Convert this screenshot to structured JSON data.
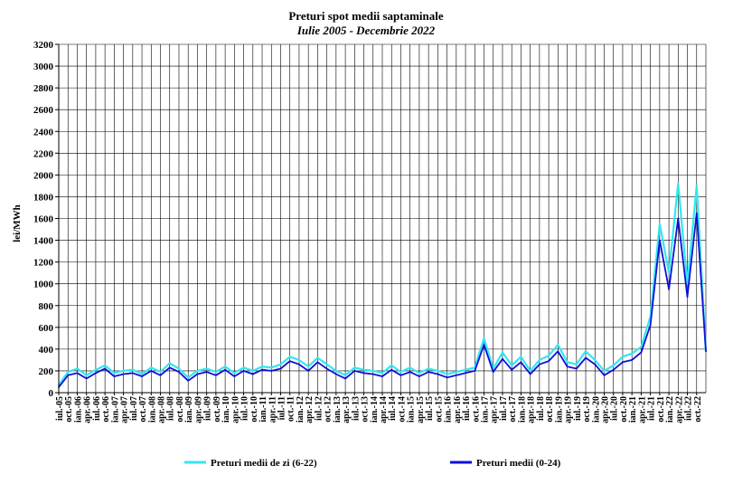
{
  "chart_data": {
    "type": "line",
    "title": "Preturi spot medii saptaminale",
    "subtitle": "Iulie 2005 - Decembrie 2022",
    "xlabel": "",
    "ylabel": "lei/MWh",
    "ylim": [
      0,
      3200
    ],
    "yticks": [
      0,
      200,
      400,
      600,
      800,
      1000,
      1200,
      1400,
      1600,
      1800,
      2000,
      2200,
      2400,
      2600,
      2800,
      3000,
      3200
    ],
    "grid": true,
    "legend_position": "bottom",
    "x_tick_labels": [
      "iul.-05",
      "oct.-05",
      "ian.-06",
      "apr.-06",
      "iul.-06",
      "oct.-06",
      "ian.-07",
      "apr.-07",
      "iul.-07",
      "oct.-07",
      "ian.-08",
      "apr.-08",
      "iul.-08",
      "oct.-08",
      "ian.-09",
      "apr.-09",
      "iul.-09",
      "oct.-09",
      "ian.-10",
      "apr.-10",
      "iul.-10",
      "oct.-10",
      "ian.-11",
      "apr.-11",
      "iul.-11",
      "oct.-11",
      "ian.-12",
      "apr.-12",
      "iul.-12",
      "oct.-12",
      "ian.-13",
      "apr.-13",
      "iul.-13",
      "oct.-13",
      "ian.-14",
      "apr.-14",
      "iul.-14",
      "oct.-14",
      "ian.-15",
      "apr.-15",
      "iul.-15",
      "oct.-15",
      "ian.-16",
      "apr.-16",
      "iul.-16",
      "oct.-16",
      "ian.-17",
      "apr.-17",
      "iul.-17",
      "oct.-17",
      "ian.-18",
      "apr.-18",
      "iul.-18",
      "oct.-18",
      "ian.-19",
      "apr.-19",
      "iul.-19",
      "oct.-19",
      "ian.-20",
      "apr.-20",
      "iul.-20",
      "oct.-20",
      "ian.-21",
      "apr.-21",
      "iul.-21",
      "oct.-21",
      "ian.-22",
      "apr.-22",
      "iul.-22",
      "oct.-22"
    ],
    "series": [
      {
        "name": "Preturi medii de zi (6-22)",
        "color": "#33e6f0",
        "x": [
          "iul.-05",
          "oct.-05",
          "ian.-06",
          "apr.-06",
          "iul.-06",
          "oct.-06",
          "ian.-07",
          "apr.-07",
          "iul.-07",
          "oct.-07",
          "ian.-08",
          "apr.-08",
          "iul.-08",
          "oct.-08",
          "ian.-09",
          "apr.-09",
          "iul.-09",
          "oct.-09",
          "ian.-10",
          "apr.-10",
          "iul.-10",
          "oct.-10",
          "ian.-11",
          "apr.-11",
          "iul.-11",
          "oct.-11",
          "ian.-12",
          "apr.-12",
          "iul.-12",
          "oct.-12",
          "ian.-13",
          "apr.-13",
          "iul.-13",
          "oct.-13",
          "ian.-14",
          "apr.-14",
          "iul.-14",
          "oct.-14",
          "ian.-15",
          "apr.-15",
          "iul.-15",
          "oct.-15",
          "ian.-16",
          "apr.-16",
          "iul.-16",
          "oct.-16",
          "ian.-17",
          "apr.-17",
          "iul.-17",
          "oct.-17",
          "ian.-18",
          "apr.-18",
          "iul.-18",
          "oct.-18",
          "ian.-19",
          "apr.-19",
          "iul.-19",
          "oct.-19",
          "ian.-20",
          "apr.-20",
          "iul.-20",
          "oct.-20",
          "ian.-21",
          "apr.-21",
          "iul.-21",
          "oct.-21",
          "ian.-22",
          "apr.-22",
          "iul.-22",
          "oct.-22",
          "dec.-22"
        ],
        "values": [
          70,
          190,
          220,
          160,
          210,
          250,
          180,
          200,
          210,
          170,
          230,
          190,
          270,
          220,
          140,
          200,
          220,
          190,
          240,
          180,
          230,
          200,
          240,
          230,
          260,
          330,
          300,
          240,
          320,
          260,
          200,
          160,
          230,
          210,
          200,
          180,
          250,
          190,
          230,
          180,
          220,
          200,
          170,
          190,
          210,
          230,
          500,
          220,
          370,
          250,
          330,
          200,
          300,
          340,
          440,
          280,
          260,
          380,
          300,
          200,
          250,
          330,
          360,
          420,
          700,
          1550,
          1100,
          1920,
          1000,
          1900,
          380
        ]
      },
      {
        "name": "Preturi medii (0-24)",
        "color": "#1010d8",
        "x": [
          "iul.-05",
          "oct.-05",
          "ian.-06",
          "apr.-06",
          "iul.-06",
          "oct.-06",
          "ian.-07",
          "apr.-07",
          "iul.-07",
          "oct.-07",
          "ian.-08",
          "apr.-08",
          "iul.-08",
          "oct.-08",
          "ian.-09",
          "apr.-09",
          "iul.-09",
          "oct.-09",
          "ian.-10",
          "apr.-10",
          "iul.-10",
          "oct.-10",
          "ian.-11",
          "apr.-11",
          "iul.-11",
          "oct.-11",
          "ian.-12",
          "apr.-12",
          "iul.-12",
          "oct.-12",
          "ian.-13",
          "apr.-13",
          "iul.-13",
          "oct.-13",
          "ian.-14",
          "apr.-14",
          "iul.-14",
          "oct.-14",
          "ian.-15",
          "apr.-15",
          "iul.-15",
          "oct.-15",
          "ian.-16",
          "apr.-16",
          "iul.-16",
          "oct.-16",
          "ian.-17",
          "apr.-17",
          "iul.-17",
          "oct.-17",
          "ian.-18",
          "apr.-18",
          "iul.-18",
          "oct.-18",
          "ian.-19",
          "apr.-19",
          "iul.-19",
          "oct.-19",
          "ian.-20",
          "apr.-20",
          "iul.-20",
          "oct.-20",
          "ian.-21",
          "apr.-21",
          "iul.-21",
          "oct.-21",
          "ian.-22",
          "apr.-22",
          "iul.-22",
          "oct.-22",
          "dec.-22"
        ],
        "values": [
          50,
          160,
          180,
          130,
          180,
          220,
          150,
          170,
          180,
          150,
          200,
          160,
          230,
          190,
          110,
          170,
          190,
          160,
          210,
          150,
          200,
          170,
          210,
          200,
          220,
          290,
          260,
          200,
          280,
          220,
          170,
          130,
          200,
          180,
          170,
          150,
          210,
          160,
          190,
          150,
          190,
          170,
          140,
          160,
          180,
          200,
          440,
          190,
          310,
          210,
          280,
          170,
          260,
          290,
          380,
          240,
          220,
          320,
          260,
          160,
          210,
          280,
          300,
          370,
          620,
          1400,
          950,
          1600,
          880,
          1650,
          380
        ]
      }
    ]
  }
}
